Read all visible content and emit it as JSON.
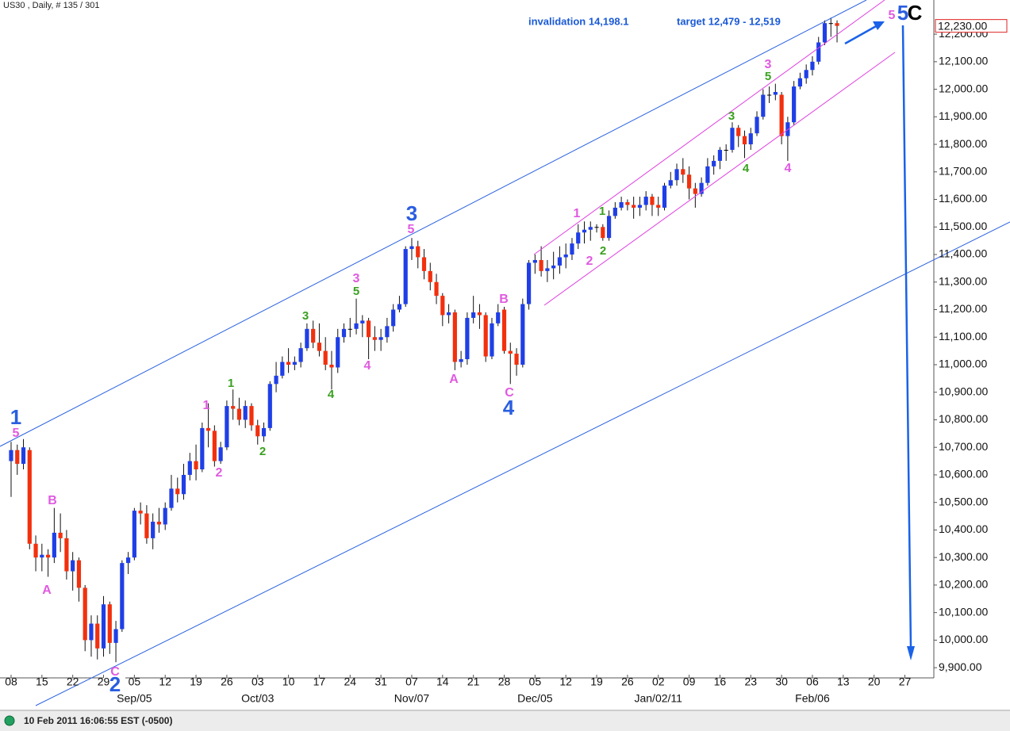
{
  "chart_data": {
    "type": "candlestick",
    "title": "US30 , Daily, # 135 / 301",
    "status": "10 Feb 2011 16:06:55 EST (-0500)",
    "up_color": "#1f3fe6",
    "down_color": "#f2300e",
    "flat_color": "#000000",
    "annotations": [
      {
        "text": "invalidation 14,198.1",
        "color": "#1a5ad6"
      },
      {
        "text": "target 12,479 - 12,519",
        "color": "#1a5ad6"
      }
    ],
    "wave_labels": [
      {
        "text": "1",
        "color": "#2a5ee0"
      },
      {
        "text": "5",
        "color": "#e05ae0"
      },
      {
        "text": "B",
        "color": "#e05ae0"
      },
      {
        "text": "A",
        "color": "#e05ae0"
      },
      {
        "text": "C",
        "color": "#e05ae0"
      },
      {
        "text": "2",
        "color": "#2a5ee0"
      },
      {
        "text": "1",
        "color": "#3aa020"
      },
      {
        "text": "1",
        "color": "#e05ae0"
      },
      {
        "text": "2",
        "color": "#e05ae0"
      },
      {
        "text": "2",
        "color": "#3aa020"
      },
      {
        "text": "3",
        "color": "#3aa020"
      },
      {
        "text": "4",
        "color": "#3aa020"
      },
      {
        "text": "3",
        "color": "#e05ae0"
      },
      {
        "text": "5",
        "color": "#3aa020"
      },
      {
        "text": "4",
        "color": "#e05ae0"
      },
      {
        "text": "3",
        "color": "#2a5ee0"
      },
      {
        "text": "5",
        "color": "#e05ae0"
      },
      {
        "text": "A",
        "color": "#e05ae0"
      },
      {
        "text": "B",
        "color": "#e05ae0"
      },
      {
        "text": "C",
        "color": "#e05ae0"
      },
      {
        "text": "4",
        "color": "#2a5ee0"
      },
      {
        "text": "1",
        "color": "#e05ae0"
      },
      {
        "text": "1",
        "color": "#3aa020"
      },
      {
        "text": "2",
        "color": "#e05ae0"
      },
      {
        "text": "2",
        "color": "#3aa020"
      },
      {
        "text": "3",
        "color": "#3aa020"
      },
      {
        "text": "4",
        "color": "#3aa020"
      },
      {
        "text": "3",
        "color": "#e05ae0"
      },
      {
        "text": "5",
        "color": "#3aa020"
      },
      {
        "text": "4",
        "color": "#e05ae0"
      },
      {
        "text": "5",
        "color": "#e05ae0"
      },
      {
        "text": "5",
        "color": "#2a5ee0"
      },
      {
        "text": "C",
        "color": "#000000"
      }
    ],
    "xlim": [
      -1.8,
      149.7
    ],
    "ylim": [
      9863,
      12324
    ],
    "xticks": [
      {
        "value": 0,
        "label": "08"
      },
      {
        "value": 5,
        "label": "15"
      },
      {
        "value": 10,
        "label": "22"
      },
      {
        "value": 15,
        "label": "29"
      },
      {
        "value": 20,
        "label": "05"
      },
      {
        "value": 25,
        "label": "12"
      },
      {
        "value": 30,
        "label": "19"
      },
      {
        "value": 35,
        "label": "26"
      },
      {
        "value": 40,
        "label": "03"
      },
      {
        "value": 45,
        "label": "10"
      },
      {
        "value": 50,
        "label": "17"
      },
      {
        "value": 55,
        "label": "24"
      },
      {
        "value": 60,
        "label": "31"
      },
      {
        "value": 65,
        "label": "07"
      },
      {
        "value": 70,
        "label": "14"
      },
      {
        "value": 75,
        "label": "21"
      },
      {
        "value": 80,
        "label": "28"
      },
      {
        "value": 85,
        "label": "05"
      },
      {
        "value": 90,
        "label": "12"
      },
      {
        "value": 95,
        "label": "19"
      },
      {
        "value": 100,
        "label": "26"
      },
      {
        "value": 105,
        "label": "02"
      },
      {
        "value": 110,
        "label": "09"
      },
      {
        "value": 115,
        "label": "16"
      },
      {
        "value": 120,
        "label": "23"
      },
      {
        "value": 125,
        "label": "30"
      },
      {
        "value": 130,
        "label": "06"
      },
      {
        "value": 135,
        "label": "13"
      },
      {
        "value": 140,
        "label": "20"
      },
      {
        "value": 145,
        "label": "27"
      }
    ],
    "month_ticks": [
      {
        "value": 20,
        "label": "Sep/05"
      },
      {
        "value": 40,
        "label": "Oct/03"
      },
      {
        "value": 65,
        "label": "Nov/07"
      },
      {
        "value": 85,
        "label": "Dec/05"
      },
      {
        "value": 105,
        "label": "Jan/02/11"
      },
      {
        "value": 130,
        "label": "Feb/06"
      }
    ],
    "yticks": [
      {
        "value": 9900,
        "label": "9,900.00"
      },
      {
        "value": 10000,
        "label": "10,000.00"
      },
      {
        "value": 10100,
        "label": "10,100.00"
      },
      {
        "value": 10200,
        "label": "10,200.00"
      },
      {
        "value": 10300,
        "label": "10,300.00"
      },
      {
        "value": 10400,
        "label": "10,400.00"
      },
      {
        "value": 10500,
        "label": "10,500.00"
      },
      {
        "value": 10600,
        "label": "10,600.00"
      },
      {
        "value": 10700,
        "label": "10,700.00"
      },
      {
        "value": 10800,
        "label": "10,800.00"
      },
      {
        "value": 10900,
        "label": "10,900.00"
      },
      {
        "value": 11000,
        "label": "11,000.00"
      },
      {
        "value": 11100,
        "label": "11,100.00"
      },
      {
        "value": 11200,
        "label": "11,200.00"
      },
      {
        "value": 11300,
        "label": "11,300.00"
      },
      {
        "value": 11400,
        "label": "11,400.00"
      },
      {
        "value": 11500,
        "label": "11,500.00"
      },
      {
        "value": 11600,
        "label": "11,600.00"
      },
      {
        "value": 11700,
        "label": "11,700.00"
      },
      {
        "value": 11800,
        "label": "11,800.00"
      },
      {
        "value": 11900,
        "label": "11,900.00"
      },
      {
        "value": 12000,
        "label": "12,000.00"
      },
      {
        "value": 12100,
        "label": "12,100.00"
      },
      {
        "value": 12200,
        "label": "12,200.00"
      }
    ],
    "last_price": {
      "value": 12230,
      "label": "12,230.00"
    },
    "open": [
      10650,
      10690,
      10640,
      10690,
      10350,
      10300,
      10310,
      10300,
      10390,
      10370,
      10250,
      10290,
      10190,
      10000,
      10060,
      9970,
      10130,
      9990,
      10040,
      10280,
      10300,
      10470,
      10460,
      10370,
      10430,
      10420,
      10480,
      10550,
      10530,
      10600,
      10650,
      10620,
      10770,
      10760,
      10650,
      10700,
      10850,
      10840,
      10800,
      10850,
      10780,
      10740,
      10770,
      10930,
      10960,
      11010,
      11000,
      11010,
      11060,
      11130,
      11080,
      11050,
      11000,
      10990,
      11100,
      11130,
      11130,
      11150,
      11160,
      11100,
      11090,
      11100,
      11140,
      11200,
      11220,
      11420,
      11430,
      11390,
      11340,
      11300,
      11250,
      11180,
      11190,
      11010,
      11020,
      11170,
      11190,
      11180,
      11030,
      11150,
      11200,
      11050,
      11040,
      11000,
      11220,
      11370,
      11380,
      11340,
      11350,
      11360,
      11390,
      11400,
      11440,
      11480,
      11490,
      11500,
      11500,
      11460,
      11540,
      11570,
      11590,
      11580,
      11570,
      11580,
      11610,
      11580,
      11570,
      11650,
      11670,
      11710,
      11690,
      11640,
      11620,
      11660,
      11720,
      11740,
      11780,
      11780,
      11860,
      11830,
      11800,
      11840,
      11900,
      11980,
      11980,
      11980,
      11830,
      11880,
      12010,
      12040,
      12070,
      12100,
      12170,
      12240,
      12240
    ],
    "high": [
      10720,
      10710,
      10730,
      10700,
      10380,
      10350,
      10330,
      10480,
      10460,
      10400,
      10320,
      10300,
      10200,
      10090,
      10090,
      10160,
      10140,
      10070,
      10290,
      10320,
      10480,
      10500,
      10490,
      10460,
      10480,
      10500,
      10600,
      10590,
      10640,
      10680,
      10710,
      10790,
      10860,
      10780,
      10720,
      10870,
      10910,
      10880,
      10870,
      10860,
      10800,
      10790,
      10940,
      11010,
      11030,
      11060,
      11030,
      11080,
      11150,
      11160,
      11150,
      11100,
      11050,
      11130,
      11150,
      11170,
      11240,
      11180,
      11170,
      11140,
      11130,
      11170,
      11220,
      11250,
      11430,
      11460,
      11450,
      11420,
      11370,
      11330,
      11260,
      11220,
      11200,
      11050,
      11190,
      11250,
      11220,
      11190,
      11170,
      11220,
      11210,
      11080,
      11060,
      11240,
      11380,
      11400,
      11430,
      11380,
      11410,
      11430,
      11440,
      11460,
      11510,
      11520,
      11520,
      11510,
      11510,
      11560,
      11590,
      11610,
      11600,
      11610,
      11610,
      11630,
      11620,
      11610,
      11660,
      11700,
      11730,
      11750,
      11720,
      11660,
      11680,
      11750,
      11760,
      11790,
      11800,
      11880,
      11870,
      11850,
      11860,
      11920,
      12000,
      12010,
      12020,
      11990,
      11900,
      12030,
      12060,
      12090,
      12120,
      12190,
      12250,
      12260,
      12250
    ],
    "low": [
      10520,
      10600,
      10620,
      10330,
      10250,
      10250,
      10230,
      10280,
      10320,
      10220,
      10180,
      10140,
      9960,
      9940,
      9930,
      9940,
      9950,
      9920,
      10030,
      10240,
      10290,
      10420,
      10350,
      10330,
      10390,
      10400,
      10470,
      10500,
      10510,
      10580,
      10580,
      10610,
      10700,
      10630,
      10640,
      10690,
      10800,
      10780,
      10770,
      10760,
      10710,
      10720,
      10760,
      10900,
      10950,
      10970,
      10980,
      10990,
      11050,
      11060,
      11030,
      10980,
      10910,
      10970,
      11080,
      11100,
      11110,
      11100,
      11020,
      11050,
      11050,
      11080,
      11120,
      11190,
      11210,
      11380,
      11350,
      11310,
      11270,
      11220,
      11140,
      11150,
      10980,
      10990,
      11000,
      11150,
      11130,
      11010,
      11020,
      11140,
      11040,
      10930,
      10960,
      10990,
      11200,
      11330,
      11320,
      11300,
      11310,
      11330,
      11350,
      11380,
      11420,
      11440,
      11450,
      11480,
      11450,
      11450,
      11530,
      11560,
      11560,
      11530,
      11540,
      11560,
      11540,
      11540,
      11560,
      11640,
      11650,
      11660,
      11600,
      11570,
      11610,
      11650,
      11690,
      11710,
      11740,
      11770,
      11790,
      11750,
      11780,
      11830,
      11890,
      11950,
      11960,
      11800,
      11740,
      11870,
      12000,
      12020,
      12050,
      12090,
      12160,
      12190,
      12170
    ],
    "close": [
      10690,
      10640,
      10700,
      10350,
      10300,
      10310,
      10300,
      10390,
      10370,
      10250,
      10290,
      10190,
      10000,
      10060,
      9970,
      10130,
      9990,
      10040,
      10280,
      10300,
      10470,
      10460,
      10370,
      10430,
      10420,
      10480,
      10550,
      10530,
      10600,
      10650,
      10620,
      10770,
      10760,
      10650,
      10700,
      10850,
      10840,
      10800,
      10850,
      10780,
      10740,
      10770,
      10930,
      10960,
      11010,
      11000,
      11010,
      11060,
      11130,
      11080,
      11050,
      11000,
      10990,
      11100,
      11130,
      11130,
      11150,
      11160,
      11100,
      11090,
      11100,
      11140,
      11200,
      11220,
      11420,
      11430,
      11390,
      11340,
      11300,
      11250,
      11180,
      11190,
      11010,
      11020,
      11170,
      11190,
      11180,
      11030,
      11150,
      11190,
      11050,
      11040,
      11000,
      11220,
      11370,
      11380,
      11340,
      11350,
      11360,
      11390,
      11400,
      11440,
      11480,
      11490,
      11500,
      11500,
      11460,
      11540,
      11570,
      11590,
      11580,
      11570,
      11580,
      11610,
      11580,
      11570,
      11650,
      11670,
      11710,
      11690,
      11640,
      11620,
      11660,
      11720,
      11740,
      11780,
      11780,
      11860,
      11830,
      11800,
      11840,
      11900,
      11980,
      11980,
      11990,
      11830,
      11880,
      12010,
      12040,
      12070,
      12100,
      12170,
      12240,
      12240,
      12230
    ]
  }
}
